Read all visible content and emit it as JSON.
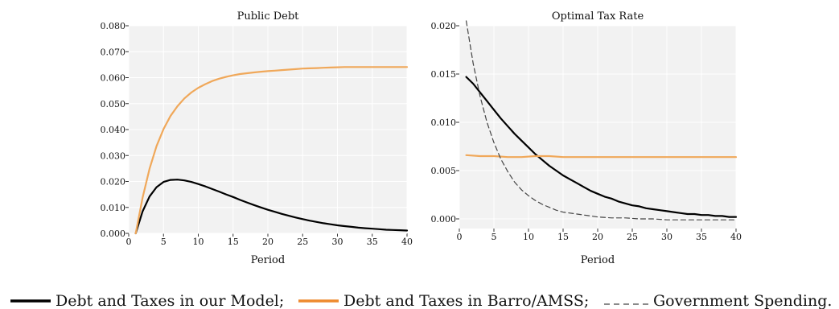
{
  "chart_data": [
    {
      "type": "line",
      "title": "Public Debt",
      "xlabel": "Period",
      "ylabel": "",
      "xlim": [
        0,
        40
      ],
      "ylim": [
        0,
        0.08
      ],
      "xticks": [
        0,
        5,
        10,
        15,
        20,
        25,
        30,
        35,
        40
      ],
      "xtick_labels": [
        "0",
        "5",
        "10",
        "15",
        "20",
        "25",
        "30",
        "35",
        "40"
      ],
      "yticks": [
        0,
        0.01,
        0.02,
        0.03,
        0.04,
        0.05,
        0.06,
        0.07,
        0.08
      ],
      "ytick_labels": [
        "0.000",
        "0.010",
        "0.020",
        "0.030",
        "0.040",
        "0.050",
        "0.060",
        "0.070",
        "0.080"
      ],
      "grid": true,
      "series": [
        {
          "color": "#000000",
          "style": "solid",
          "x": [
            1,
            2,
            3,
            4,
            5,
            6,
            7,
            8,
            9,
            10,
            11,
            12,
            13,
            14,
            15,
            16,
            17,
            18,
            19,
            20,
            21,
            22,
            23,
            24,
            25,
            26,
            27,
            28,
            29,
            30,
            31,
            32,
            33,
            34,
            35,
            36,
            37,
            38,
            39,
            40
          ],
          "y": [
            0.0,
            0.0085,
            0.0142,
            0.0178,
            0.0198,
            0.0206,
            0.0207,
            0.0204,
            0.0198,
            0.019,
            0.0181,
            0.0171,
            0.0161,
            0.015,
            0.014,
            0.0129,
            0.0119,
            0.0109,
            0.01,
            0.0091,
            0.0083,
            0.0075,
            0.0068,
            0.0061,
            0.0055,
            0.0049,
            0.0044,
            0.0039,
            0.0035,
            0.0031,
            0.0028,
            0.0025,
            0.0022,
            0.002,
            0.0018,
            0.0016,
            0.0014,
            0.0013,
            0.0012,
            0.0011
          ]
        },
        {
          "color": "#f0a85a",
          "style": "solid",
          "x": [
            1,
            2,
            3,
            4,
            5,
            6,
            7,
            8,
            9,
            10,
            11,
            12,
            13,
            14,
            15,
            16,
            17,
            18,
            19,
            20,
            21,
            22,
            23,
            24,
            25,
            26,
            27,
            28,
            29,
            30,
            31,
            32,
            33,
            34,
            35,
            36,
            37,
            38,
            39,
            40
          ],
          "y": [
            0.0,
            0.0138,
            0.0249,
            0.0336,
            0.0402,
            0.0452,
            0.049,
            0.052,
            0.0543,
            0.0561,
            0.0575,
            0.0587,
            0.0596,
            0.0603,
            0.0609,
            0.0614,
            0.0617,
            0.062,
            0.0623,
            0.0625,
            0.0627,
            0.0629,
            0.0631,
            0.0633,
            0.0635,
            0.0636,
            0.0637,
            0.0638,
            0.0639,
            0.064,
            0.0641,
            0.0641,
            0.0641,
            0.0641,
            0.0641,
            0.0641,
            0.0641,
            0.0641,
            0.0641,
            0.0641
          ]
        }
      ]
    },
    {
      "type": "line",
      "title": "Optimal Tax Rate",
      "xlabel": "Period",
      "ylabel": "",
      "xlim": [
        0,
        40
      ],
      "ylim": [
        -0.001,
        0.02
      ],
      "xticks": [
        0,
        5,
        10,
        15,
        20,
        25,
        30,
        35,
        40
      ],
      "xtick_labels": [
        "0",
        "5",
        "10",
        "15",
        "20",
        "25",
        "30",
        "35",
        "40"
      ],
      "yticks": [
        0,
        0.005,
        0.01,
        0.015,
        0.02
      ],
      "ytick_labels": [
        "0.000",
        "0.005",
        "0.010",
        "0.015",
        "0.020"
      ],
      "grid": true,
      "series": [
        {
          "color": "#000000",
          "style": "solid",
          "x": [
            1,
            2,
            3,
            4,
            5,
            6,
            7,
            8,
            9,
            10,
            11,
            12,
            13,
            14,
            15,
            16,
            17,
            18,
            19,
            20,
            21,
            22,
            23,
            24,
            25,
            26,
            27,
            28,
            29,
            30,
            31,
            32,
            33,
            34,
            35,
            36,
            37,
            38,
            39,
            40
          ],
          "y": [
            0.0147,
            0.014,
            0.0131,
            0.0122,
            0.0113,
            0.0104,
            0.0096,
            0.0088,
            0.0081,
            0.0074,
            0.0067,
            0.0061,
            0.0055,
            0.005,
            0.0045,
            0.0041,
            0.0037,
            0.0033,
            0.0029,
            0.0026,
            0.0023,
            0.0021,
            0.0018,
            0.0016,
            0.0014,
            0.0013,
            0.0011,
            0.001,
            0.0009,
            0.0008,
            0.0007,
            0.0006,
            0.0005,
            0.0005,
            0.0004,
            0.0004,
            0.0003,
            0.0003,
            0.0002,
            0.0002
          ]
        },
        {
          "color": "#f0a85a",
          "style": "solid",
          "x": [
            1,
            3,
            5,
            7,
            9,
            11,
            13,
            15,
            20,
            25,
            30,
            35,
            40
          ],
          "y": [
            0.0066,
            0.0065,
            0.0065,
            0.0064,
            0.0064,
            0.0065,
            0.0065,
            0.0064,
            0.0064,
            0.0064,
            0.0064,
            0.0064,
            0.0064
          ]
        },
        {
          "color": "#444444",
          "style": "dashed",
          "x": [
            1,
            2,
            3,
            4,
            5,
            6,
            7,
            8,
            9,
            10,
            11,
            12,
            13,
            14,
            15,
            16,
            17,
            18,
            19,
            20,
            22,
            24,
            26,
            28,
            30,
            32,
            34,
            36,
            38,
            40
          ],
          "y": [
            0.0205,
            0.0161,
            0.0127,
            0.01,
            0.0079,
            0.0062,
            0.0049,
            0.0038,
            0.003,
            0.0024,
            0.0019,
            0.0015,
            0.0012,
            0.0009,
            0.0007,
            0.0006,
            0.0005,
            0.0004,
            0.0003,
            0.0002,
            0.0001,
            0.0001,
            0.0,
            0.0,
            -0.0001,
            -0.0001,
            -0.0001,
            -0.0001,
            -0.0001,
            -0.0001
          ]
        }
      ]
    }
  ],
  "legend": [
    {
      "label": "Debt and Taxes in our Model;",
      "color": "#000000",
      "style": "solid"
    },
    {
      "label": "Debt and Taxes in Barro/AMSS;",
      "color": "#ee8a2e",
      "style": "solid"
    },
    {
      "label": "Government Spending.",
      "color": "#444444",
      "style": "dashed"
    }
  ]
}
